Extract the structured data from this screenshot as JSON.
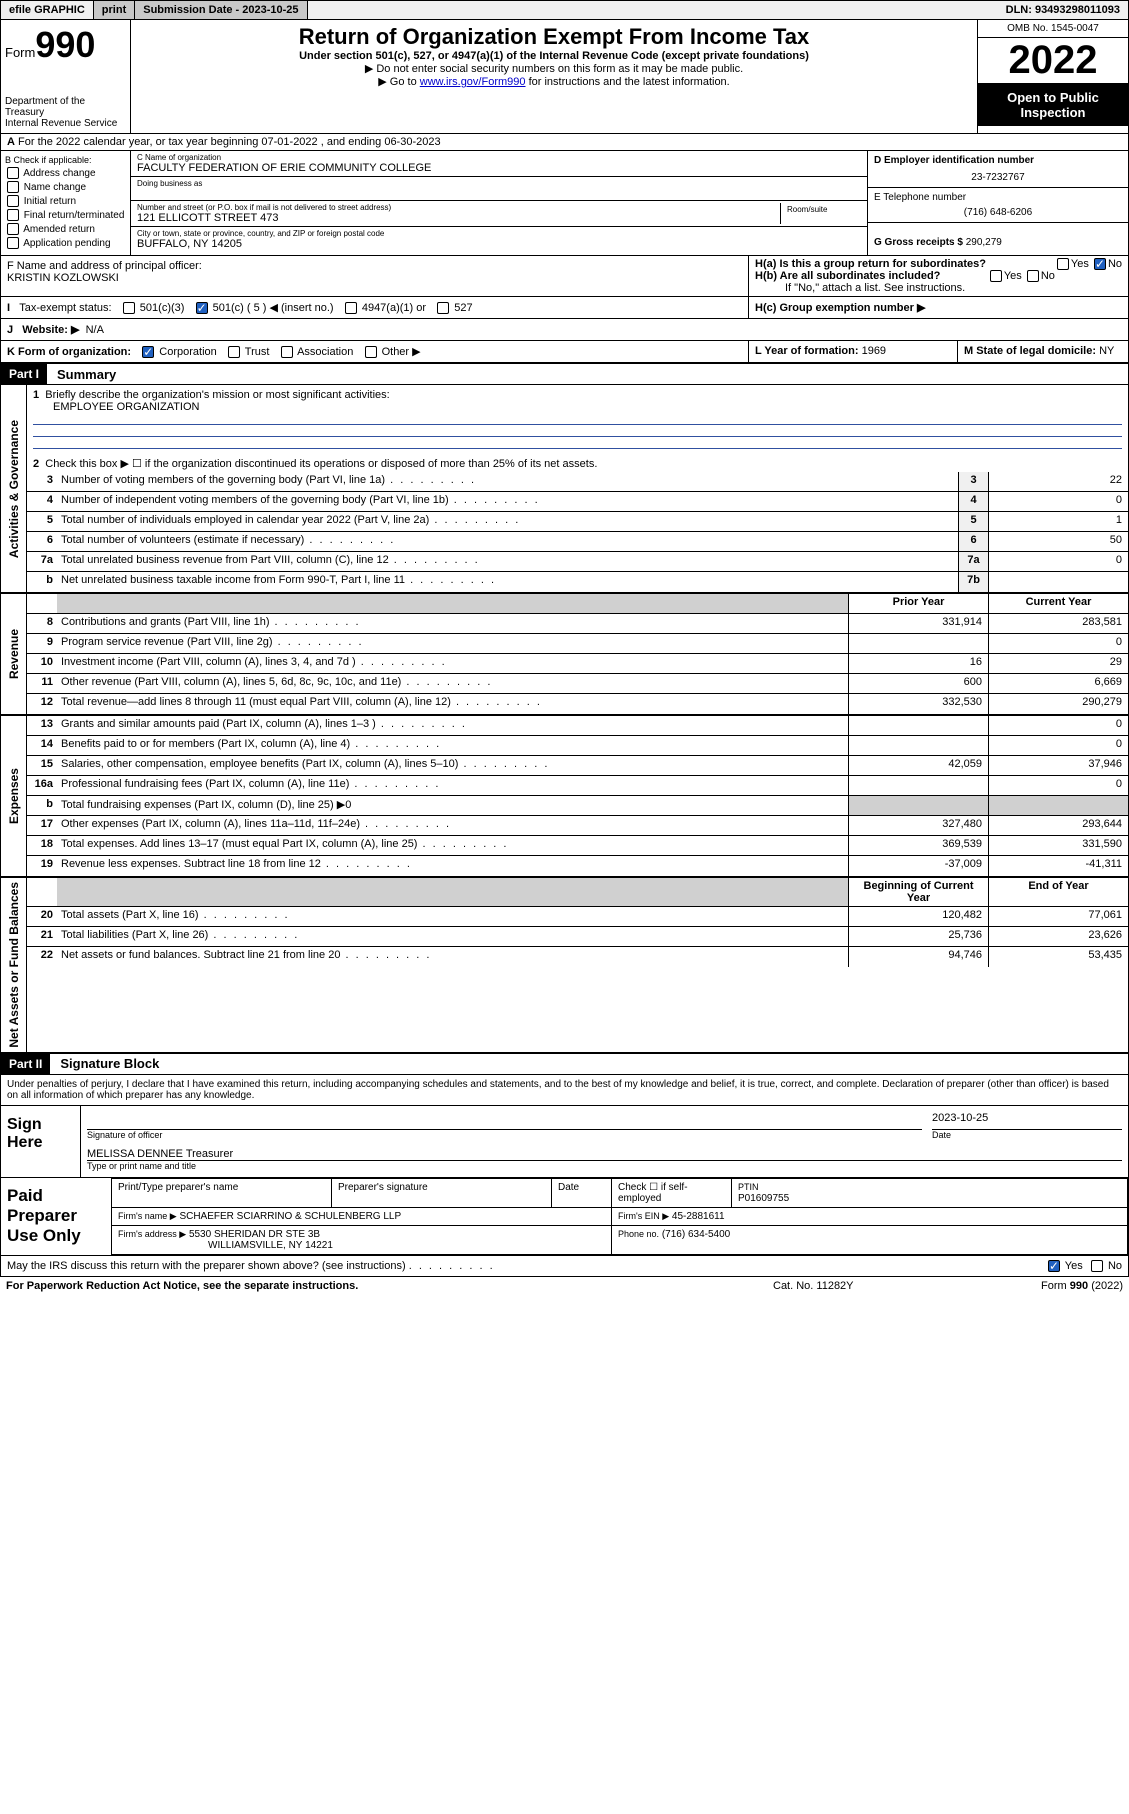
{
  "top_bar": {
    "efile": "efile GRAPHIC",
    "print": "print",
    "sub_label": "Submission Date - 2023-10-25",
    "dln": "DLN: 93493298011093"
  },
  "header": {
    "form_word": "Form",
    "form_num": "990",
    "dept": "Department of the Treasury",
    "irs": "Internal Revenue Service",
    "title": "Return of Organization Exempt From Income Tax",
    "subtitle": "Under section 501(c), 527, or 4947(a)(1) of the Internal Revenue Code (except private foundations)",
    "note1": "▶ Do not enter social security numbers on this form as it may be made public.",
    "note2_pre": "▶ Go to ",
    "note2_link": "www.irs.gov/Form990",
    "note2_post": " for instructions and the latest information.",
    "omb": "OMB No. 1545-0047",
    "year": "2022",
    "open": "Open to Public Inspection"
  },
  "row_a": "For the 2022 calendar year, or tax year beginning 07-01-2022   , and ending 06-30-2023",
  "col_b": {
    "title": "B Check if applicable:",
    "items": [
      "Address change",
      "Name change",
      "Initial return",
      "Final return/terminated",
      "Amended return",
      "Application pending"
    ]
  },
  "col_c": {
    "name_lbl": "C Name of organization",
    "name_val": "FACULTY FEDERATION OF ERIE COMMUNITY COLLEGE",
    "dba_lbl": "Doing business as",
    "addr_lbl": "Number and street (or P.O. box if mail is not delivered to street address)",
    "addr_val": "121 ELLICOTT STREET 473",
    "room_lbl": "Room/suite",
    "city_lbl": "City or town, state or province, country, and ZIP or foreign postal code",
    "city_val": "BUFFALO, NY  14205"
  },
  "col_d": {
    "ein_lbl": "D Employer identification number",
    "ein_val": "23-7232767",
    "tel_lbl": "E Telephone number",
    "tel_val": "(716) 648-6206",
    "gross_lbl": "G Gross receipts $",
    "gross_val": "290,279"
  },
  "row_f": {
    "lbl": "F  Name and address of principal officer:",
    "val": "KRISTIN KOZLOWSKI"
  },
  "row_h": {
    "ha": "H(a)  Is this a group return for subordinates?",
    "hb": "H(b)  Are all subordinates included?",
    "hb_note": "If \"No,\" attach a list. See instructions.",
    "hc": "H(c)  Group exemption number ▶",
    "yes": "Yes",
    "no": "No"
  },
  "row_i": {
    "lbl": "Tax-exempt status:",
    "o1": "501(c)(3)",
    "o2": "501(c) ( 5 ) ◀ (insert no.)",
    "o3": "4947(a)(1) or",
    "o4": "527"
  },
  "row_j": {
    "lbl": "Website: ▶",
    "val": "N/A"
  },
  "row_k": {
    "lbl": "K Form of organization:",
    "o1": "Corporation",
    "o2": "Trust",
    "o3": "Association",
    "o4": "Other ▶"
  },
  "row_l": {
    "lbl": "L Year of formation:",
    "val": "1969"
  },
  "row_m": {
    "lbl": "M State of legal domicile:",
    "val": "NY"
  },
  "part1": {
    "hdr": "Part I",
    "title": "Summary",
    "l1": "Briefly describe the organization's mission or most significant activities:",
    "l1_val": "EMPLOYEE ORGANIZATION",
    "l2": "Check this box ▶ ☐  if the organization discontinued its operations or disposed of more than 25% of its net assets.",
    "side_ag": "Activities & Governance",
    "side_rev": "Revenue",
    "side_exp": "Expenses",
    "side_na": "Net Assets or Fund Balances",
    "prior": "Prior Year",
    "current": "Current Year",
    "begin": "Beginning of Current Year",
    "end": "End of Year",
    "lines_ag": [
      {
        "n": "3",
        "d": "Number of voting members of the governing body (Part VI, line 1a)",
        "box": "3",
        "v": "22"
      },
      {
        "n": "4",
        "d": "Number of independent voting members of the governing body (Part VI, line 1b)",
        "box": "4",
        "v": "0"
      },
      {
        "n": "5",
        "d": "Total number of individuals employed in calendar year 2022 (Part V, line 2a)",
        "box": "5",
        "v": "1"
      },
      {
        "n": "6",
        "d": "Total number of volunteers (estimate if necessary)",
        "box": "6",
        "v": "50"
      },
      {
        "n": "7a",
        "d": "Total unrelated business revenue from Part VIII, column (C), line 12",
        "box": "7a",
        "v": "0"
      },
      {
        "n": "b",
        "d": "Net unrelated business taxable income from Form 990-T, Part I, line 11",
        "box": "7b",
        "v": ""
      }
    ],
    "lines_rev": [
      {
        "n": "8",
        "d": "Contributions and grants (Part VIII, line 1h)",
        "p": "331,914",
        "c": "283,581"
      },
      {
        "n": "9",
        "d": "Program service revenue (Part VIII, line 2g)",
        "p": "",
        "c": "0"
      },
      {
        "n": "10",
        "d": "Investment income (Part VIII, column (A), lines 3, 4, and 7d )",
        "p": "16",
        "c": "29"
      },
      {
        "n": "11",
        "d": "Other revenue (Part VIII, column (A), lines 5, 6d, 8c, 9c, 10c, and 11e)",
        "p": "600",
        "c": "6,669"
      },
      {
        "n": "12",
        "d": "Total revenue—add lines 8 through 11 (must equal Part VIII, column (A), line 12)",
        "p": "332,530",
        "c": "290,279"
      }
    ],
    "lines_exp": [
      {
        "n": "13",
        "d": "Grants and similar amounts paid (Part IX, column (A), lines 1–3 )",
        "p": "",
        "c": "0"
      },
      {
        "n": "14",
        "d": "Benefits paid to or for members (Part IX, column (A), line 4)",
        "p": "",
        "c": "0"
      },
      {
        "n": "15",
        "d": "Salaries, other compensation, employee benefits (Part IX, column (A), lines 5–10)",
        "p": "42,059",
        "c": "37,946"
      },
      {
        "n": "16a",
        "d": "Professional fundraising fees (Part IX, column (A), line 11e)",
        "p": "",
        "c": "0"
      },
      {
        "n": "b",
        "d": "Total fundraising expenses (Part IX, column (D), line 25) ▶0",
        "p": "",
        "c": "",
        "noval": true
      },
      {
        "n": "17",
        "d": "Other expenses (Part IX, column (A), lines 11a–11d, 11f–24e)",
        "p": "327,480",
        "c": "293,644"
      },
      {
        "n": "18",
        "d": "Total expenses. Add lines 13–17 (must equal Part IX, column (A), line 25)",
        "p": "369,539",
        "c": "331,590"
      },
      {
        "n": "19",
        "d": "Revenue less expenses. Subtract line 18 from line 12",
        "p": "-37,009",
        "c": "-41,311"
      }
    ],
    "lines_na": [
      {
        "n": "20",
        "d": "Total assets (Part X, line 16)",
        "p": "120,482",
        "c": "77,061"
      },
      {
        "n": "21",
        "d": "Total liabilities (Part X, line 26)",
        "p": "25,736",
        "c": "23,626"
      },
      {
        "n": "22",
        "d": "Net assets or fund balances. Subtract line 21 from line 20",
        "p": "94,746",
        "c": "53,435"
      }
    ]
  },
  "part2": {
    "hdr": "Part II",
    "title": "Signature Block",
    "decl": "Under penalties of perjury, I declare that I have examined this return, including accompanying schedules and statements, and to the best of my knowledge and belief, it is true, correct, and complete. Declaration of preparer (other than officer) is based on all information of which preparer has any knowledge.",
    "sign_here": "Sign Here",
    "sig_officer": "Signature of officer",
    "date": "Date",
    "date_val": "2023-10-25",
    "name_title": "MELISSA DENNEE  Treasurer",
    "type_name": "Type or print name and title",
    "paid": "Paid Preparer Use Only",
    "pt_name": "Print/Type preparer's name",
    "pt_sig": "Preparer's signature",
    "pt_date": "Date",
    "pt_check": "Check ☐ if self-employed",
    "ptin_lbl": "PTIN",
    "ptin_val": "P01609755",
    "firm_name_lbl": "Firm's name     ▶",
    "firm_name": "SCHAEFER SCIARRINO & SCHULENBERG LLP",
    "firm_ein_lbl": "Firm's EIN ▶",
    "firm_ein": "45-2881611",
    "firm_addr_lbl": "Firm's address ▶",
    "firm_addr1": "5530 SHERIDAN DR STE 3B",
    "firm_addr2": "WILLIAMSVILLE, NY  14221",
    "phone_lbl": "Phone no.",
    "phone": "(716) 634-5400",
    "discuss": "May the IRS discuss this return with the preparer shown above? (see instructions)"
  },
  "footer": {
    "l": "For Paperwork Reduction Act Notice, see the separate instructions.",
    "c": "Cat. No. 11282Y",
    "r": "Form 990 (2022)"
  }
}
